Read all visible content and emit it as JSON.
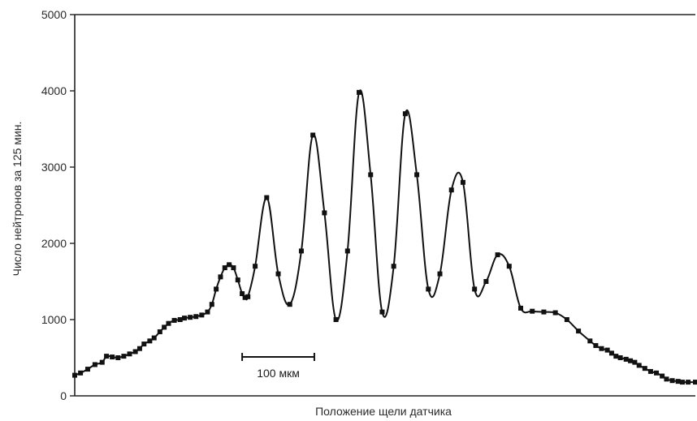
{
  "chart_data": {
    "type": "line",
    "title": "",
    "xlabel": "Положение щели датчика",
    "ylabel": "Число нейтронов за 125 мин.",
    "ylim": [
      0,
      5000
    ],
    "yticks": [
      "0",
      "1000",
      "2000",
      "3000",
      "4000",
      "5000"
    ],
    "grid": false,
    "legend": "none",
    "scale_bar": {
      "label": "100 мкм",
      "length_um": 100
    },
    "colors": {
      "line": "#111111",
      "marker": "#111111",
      "axis": "#222222"
    },
    "x_range_um": [
      0,
      860
    ],
    "series": [
      {
        "x": [
          0,
          8,
          18,
          28,
          38,
          44,
          52,
          60,
          68,
          76,
          84,
          90,
          96,
          104,
          110,
          118,
          124,
          130,
          138,
          146,
          152,
          160,
          168,
          176,
          184,
          190,
          196,
          202,
          208,
          214,
          220,
          226,
          232,
          236,
          240,
          250,
          266,
          282,
          298,
          314,
          330,
          346,
          362,
          378,
          394,
          410,
          426,
          442,
          458,
          474,
          490,
          506,
          522,
          538,
          554,
          570,
          586,
          602,
          618,
          634,
          650,
          666,
          682,
          698,
          714,
          722,
          730,
          738,
          744,
          750,
          756,
          764,
          770,
          776,
          782,
          790,
          798,
          806,
          814,
          820,
          828,
          836,
          842,
          850,
          860
        ],
        "y": [
          270,
          300,
          350,
          410,
          440,
          520,
          510,
          500,
          520,
          550,
          580,
          620,
          680,
          720,
          760,
          840,
          900,
          950,
          990,
          1000,
          1020,
          1030,
          1040,
          1060,
          1100,
          1200,
          1400,
          1560,
          1680,
          1720,
          1680,
          1520,
          1340,
          1290,
          1300,
          1700,
          2600,
          1600,
          1200,
          1900,
          3420,
          2400,
          1000,
          1900,
          3980,
          2900,
          1100,
          1700,
          3700,
          2900,
          1400,
          1600,
          2700,
          2800,
          1400,
          1500,
          1850,
          1700,
          1150,
          1110,
          1100,
          1090,
          1000,
          850,
          720,
          660,
          620,
          600,
          560,
          520,
          500,
          480,
          460,
          440,
          400,
          360,
          320,
          300,
          260,
          220,
          200,
          190,
          180,
          180,
          180
        ]
      }
    ]
  }
}
